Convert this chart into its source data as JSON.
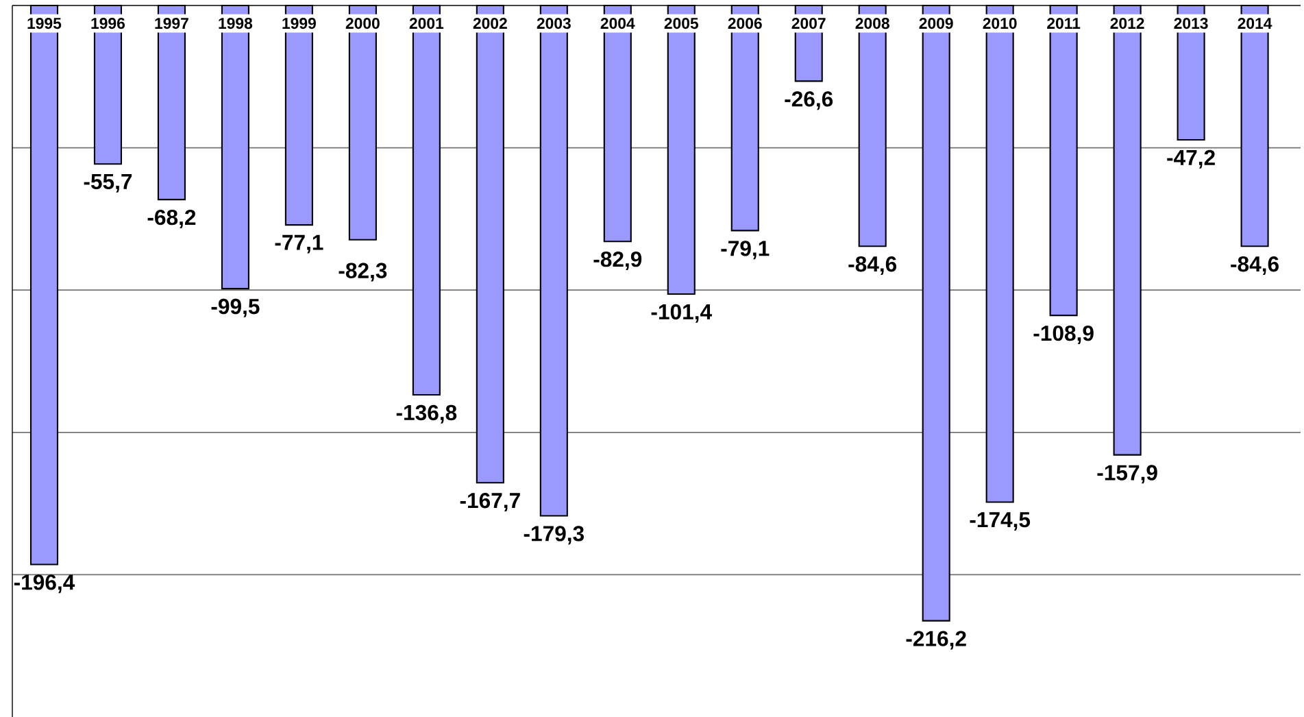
{
  "chart_data": {
    "type": "bar",
    "categories": [
      "1995",
      "1996",
      "1997",
      "1998",
      "1999",
      "2000",
      "2001",
      "2002",
      "2003",
      "2004",
      "2005",
      "2006",
      "2007",
      "2008",
      "2009",
      "2010",
      "2011",
      "2012",
      "2013",
      "2014"
    ],
    "values": [
      -196.4,
      -55.7,
      -68.2,
      -99.5,
      -77.1,
      -82.3,
      -136.8,
      -167.7,
      -179.3,
      -82.9,
      -101.4,
      -79.1,
      -26.6,
      -84.6,
      -216.2,
      -174.5,
      -108.9,
      -157.9,
      -47.2,
      -84.6
    ],
    "value_labels": [
      "-196,4",
      "-55,7",
      "-68,2",
      "-99,5",
      "-77,1",
      "-82,3",
      "-136,8",
      "-167,7",
      "-179,3",
      "-82,9",
      "-101,4",
      "-79,1",
      "-26,6",
      "-84,6",
      "-216,2",
      "-174,5",
      "-108,9",
      "-157,9",
      "-47,2",
      "-84,6"
    ],
    "color": "#9999ff",
    "ylim": [
      -250,
      0
    ],
    "yticks": [
      {
        "value": -200,
        "label": null
      },
      {
        "value": -150,
        "label": null
      },
      {
        "value": -100,
        "label": null
      },
      {
        "value": -50,
        "label": null
      }
    ],
    "grid": "y"
  }
}
